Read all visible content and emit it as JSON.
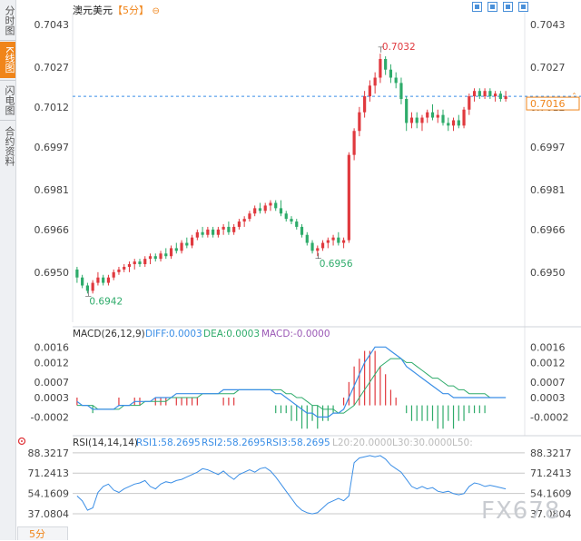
{
  "sidebar": {
    "tabs": [
      {
        "label": "分时图"
      },
      {
        "label": "K线图"
      },
      {
        "label": "闪电图"
      },
      {
        "label": "合约资料"
      }
    ]
  },
  "header": {
    "title": "澳元美元",
    "period": "【5分】",
    "toolbar_icons": [
      "layout-1-icon",
      "layout-2-icon",
      "layout-3-icon",
      "layout-4-icon"
    ]
  },
  "bottom": {
    "period_tab": "5分"
  },
  "watermark": "FX678",
  "colors": {
    "up": "#e0393e",
    "down": "#2eab6a",
    "dif": "#3a8ee6",
    "dea": "#2eab6a",
    "rsi": "#3a8ee6",
    "accent": "#f0851a"
  },
  "chart_data": [
    {
      "type": "candlestick",
      "title": "澳元美元【5分】",
      "ylim": [
        0.6937,
        0.7046
      ],
      "y_ticks": [
        "0.7043",
        "0.7027",
        "0.7012",
        "0.6997",
        "0.6981",
        "0.6966",
        "0.6950"
      ],
      "current_price": "0.7016",
      "annotations": [
        {
          "label": "0.6942"
        },
        {
          "label": "0.6956"
        },
        {
          "label": "0.7032"
        }
      ],
      "candles": [
        {
          "o": 0.6951,
          "h": 0.6952,
          "l": 0.6946,
          "c": 0.6948
        },
        {
          "o": 0.6948,
          "h": 0.6949,
          "l": 0.6944,
          "c": 0.6945
        },
        {
          "o": 0.6945,
          "h": 0.6946,
          "l": 0.6942,
          "c": 0.6943
        },
        {
          "o": 0.6943,
          "h": 0.6947,
          "l": 0.6942,
          "c": 0.6946
        },
        {
          "o": 0.6946,
          "h": 0.695,
          "l": 0.6945,
          "c": 0.6948
        },
        {
          "o": 0.6948,
          "h": 0.6949,
          "l": 0.6945,
          "c": 0.6946
        },
        {
          "o": 0.6946,
          "h": 0.6949,
          "l": 0.6945,
          "c": 0.6948
        },
        {
          "o": 0.6948,
          "h": 0.6951,
          "l": 0.6947,
          "c": 0.695
        },
        {
          "o": 0.695,
          "h": 0.6952,
          "l": 0.6949,
          "c": 0.6951
        },
        {
          "o": 0.6951,
          "h": 0.6953,
          "l": 0.695,
          "c": 0.6952
        },
        {
          "o": 0.6952,
          "h": 0.6954,
          "l": 0.695,
          "c": 0.6953
        },
        {
          "o": 0.6953,
          "h": 0.6955,
          "l": 0.6951,
          "c": 0.6954
        },
        {
          "o": 0.6954,
          "h": 0.6955,
          "l": 0.6952,
          "c": 0.6953
        },
        {
          "o": 0.6953,
          "h": 0.6956,
          "l": 0.6952,
          "c": 0.6955
        },
        {
          "o": 0.6955,
          "h": 0.6957,
          "l": 0.6953,
          "c": 0.6956
        },
        {
          "o": 0.6956,
          "h": 0.6957,
          "l": 0.6954,
          "c": 0.6955
        },
        {
          "o": 0.6955,
          "h": 0.6958,
          "l": 0.6954,
          "c": 0.6957
        },
        {
          "o": 0.6957,
          "h": 0.6959,
          "l": 0.6955,
          "c": 0.6956
        },
        {
          "o": 0.6956,
          "h": 0.696,
          "l": 0.6955,
          "c": 0.6959
        },
        {
          "o": 0.6959,
          "h": 0.6961,
          "l": 0.6957,
          "c": 0.6958
        },
        {
          "o": 0.6958,
          "h": 0.6962,
          "l": 0.6957,
          "c": 0.6961
        },
        {
          "o": 0.6961,
          "h": 0.6963,
          "l": 0.6959,
          "c": 0.696
        },
        {
          "o": 0.696,
          "h": 0.6964,
          "l": 0.6959,
          "c": 0.6963
        },
        {
          "o": 0.6963,
          "h": 0.6966,
          "l": 0.6962,
          "c": 0.6965
        },
        {
          "o": 0.6965,
          "h": 0.6967,
          "l": 0.6963,
          "c": 0.6964
        },
        {
          "o": 0.6964,
          "h": 0.6967,
          "l": 0.6963,
          "c": 0.6966
        },
        {
          "o": 0.6966,
          "h": 0.6967,
          "l": 0.6963,
          "c": 0.6964
        },
        {
          "o": 0.6964,
          "h": 0.6967,
          "l": 0.6963,
          "c": 0.6966
        },
        {
          "o": 0.6966,
          "h": 0.6968,
          "l": 0.6964,
          "c": 0.6967
        },
        {
          "o": 0.6967,
          "h": 0.6969,
          "l": 0.6964,
          "c": 0.6965
        },
        {
          "o": 0.6965,
          "h": 0.6968,
          "l": 0.6964,
          "c": 0.6967
        },
        {
          "o": 0.6967,
          "h": 0.697,
          "l": 0.6966,
          "c": 0.6969
        },
        {
          "o": 0.6969,
          "h": 0.6971,
          "l": 0.6967,
          "c": 0.697
        },
        {
          "o": 0.697,
          "h": 0.6973,
          "l": 0.6969,
          "c": 0.6972
        },
        {
          "o": 0.6972,
          "h": 0.6975,
          "l": 0.6971,
          "c": 0.6974
        },
        {
          "o": 0.6974,
          "h": 0.6976,
          "l": 0.6972,
          "c": 0.6973
        },
        {
          "o": 0.6973,
          "h": 0.6976,
          "l": 0.6972,
          "c": 0.6975
        },
        {
          "o": 0.6975,
          "h": 0.6977,
          "l": 0.6973,
          "c": 0.6976
        },
        {
          "o": 0.6976,
          "h": 0.6977,
          "l": 0.6973,
          "c": 0.6974
        },
        {
          "o": 0.6974,
          "h": 0.6977,
          "l": 0.6971,
          "c": 0.6972
        },
        {
          "o": 0.6972,
          "h": 0.6973,
          "l": 0.6969,
          "c": 0.697
        },
        {
          "o": 0.697,
          "h": 0.6971,
          "l": 0.6968,
          "c": 0.6969
        },
        {
          "o": 0.6969,
          "h": 0.697,
          "l": 0.6966,
          "c": 0.6967
        },
        {
          "o": 0.6967,
          "h": 0.6968,
          "l": 0.6963,
          "c": 0.6964
        },
        {
          "o": 0.6964,
          "h": 0.6965,
          "l": 0.696,
          "c": 0.6961
        },
        {
          "o": 0.6961,
          "h": 0.6962,
          "l": 0.6957,
          "c": 0.6958
        },
        {
          "o": 0.6958,
          "h": 0.696,
          "l": 0.6956,
          "c": 0.6959
        },
        {
          "o": 0.6959,
          "h": 0.6962,
          "l": 0.6958,
          "c": 0.6961
        },
        {
          "o": 0.6961,
          "h": 0.6963,
          "l": 0.6959,
          "c": 0.6962
        },
        {
          "o": 0.6962,
          "h": 0.6964,
          "l": 0.696,
          "c": 0.6963
        },
        {
          "o": 0.6963,
          "h": 0.6965,
          "l": 0.696,
          "c": 0.6961
        },
        {
          "o": 0.6961,
          "h": 0.6963,
          "l": 0.6959,
          "c": 0.6962
        },
        {
          "o": 0.6962,
          "h": 0.6995,
          "l": 0.6961,
          "c": 0.6994
        },
        {
          "o": 0.6994,
          "h": 0.7004,
          "l": 0.6992,
          "c": 0.7003
        },
        {
          "o": 0.7003,
          "h": 0.7012,
          "l": 0.7001,
          "c": 0.701
        },
        {
          "o": 0.701,
          "h": 0.7018,
          "l": 0.7008,
          "c": 0.7016
        },
        {
          "o": 0.7016,
          "h": 0.7022,
          "l": 0.7014,
          "c": 0.702
        },
        {
          "o": 0.702,
          "h": 0.7025,
          "l": 0.7017,
          "c": 0.7023
        },
        {
          "o": 0.7023,
          "h": 0.7032,
          "l": 0.7021,
          "c": 0.703
        },
        {
          "o": 0.703,
          "h": 0.7031,
          "l": 0.7024,
          "c": 0.7026
        },
        {
          "o": 0.7026,
          "h": 0.7028,
          "l": 0.7021,
          "c": 0.7023
        },
        {
          "o": 0.7023,
          "h": 0.7025,
          "l": 0.7019,
          "c": 0.7021
        },
        {
          "o": 0.7021,
          "h": 0.7023,
          "l": 0.7013,
          "c": 0.7015
        },
        {
          "o": 0.7015,
          "h": 0.7016,
          "l": 0.7003,
          "c": 0.7006
        },
        {
          "o": 0.7006,
          "h": 0.701,
          "l": 0.7004,
          "c": 0.7008
        },
        {
          "o": 0.7008,
          "h": 0.701,
          "l": 0.7004,
          "c": 0.7006
        },
        {
          "o": 0.7006,
          "h": 0.7009,
          "l": 0.7003,
          "c": 0.7008
        },
        {
          "o": 0.7008,
          "h": 0.7011,
          "l": 0.7006,
          "c": 0.701
        },
        {
          "o": 0.701,
          "h": 0.7013,
          "l": 0.7007,
          "c": 0.7008
        },
        {
          "o": 0.7008,
          "h": 0.7011,
          "l": 0.7006,
          "c": 0.7009
        },
        {
          "o": 0.7009,
          "h": 0.7011,
          "l": 0.7005,
          "c": 0.7006
        },
        {
          "o": 0.7006,
          "h": 0.7008,
          "l": 0.7003,
          "c": 0.7005
        },
        {
          "o": 0.7005,
          "h": 0.7008,
          "l": 0.7003,
          "c": 0.7007
        },
        {
          "o": 0.7007,
          "h": 0.7009,
          "l": 0.7004,
          "c": 0.7005
        },
        {
          "o": 0.7005,
          "h": 0.7012,
          "l": 0.7004,
          "c": 0.7011
        },
        {
          "o": 0.7011,
          "h": 0.7017,
          "l": 0.7009,
          "c": 0.7016
        },
        {
          "o": 0.7016,
          "h": 0.7019,
          "l": 0.7014,
          "c": 0.7018
        },
        {
          "o": 0.7018,
          "h": 0.7019,
          "l": 0.7015,
          "c": 0.7016
        },
        {
          "o": 0.7016,
          "h": 0.7019,
          "l": 0.7015,
          "c": 0.7018
        },
        {
          "o": 0.7018,
          "h": 0.7019,
          "l": 0.7015,
          "c": 0.7016
        },
        {
          "o": 0.7016,
          "h": 0.7018,
          "l": 0.7014,
          "c": 0.7017
        },
        {
          "o": 0.7017,
          "h": 0.7018,
          "l": 0.7014,
          "c": 0.7015
        },
        {
          "o": 0.7015,
          "h": 0.7018,
          "l": 0.7014,
          "c": 0.7016
        }
      ]
    },
    {
      "type": "line",
      "title": "MACD(26,12,9)",
      "legend": [
        {
          "label": "DIFF:0.0003"
        },
        {
          "label": "DEA:0.0003"
        },
        {
          "label": "MACD:-0.0000"
        }
      ],
      "ylim": [
        -0.0004,
        0.0017
      ],
      "y_ticks": [
        "0.0016",
        "0.0012",
        "0.0007",
        "0.0003",
        "-0.0002"
      ],
      "diff": [
        0.0002,
        0.0001,
        0.0001,
        0.0,
        0.0,
        0.0,
        0.0,
        0.0,
        0.0001,
        0.0001,
        0.0001,
        0.0002,
        0.0002,
        0.0002,
        0.0002,
        0.0003,
        0.0003,
        0.0003,
        0.0003,
        0.0004,
        0.0004,
        0.0004,
        0.0004,
        0.0004,
        0.0004,
        0.0004,
        0.0004,
        0.0004,
        0.0005,
        0.0005,
        0.0005,
        0.0005,
        0.0005,
        0.0005,
        0.0005,
        0.0005,
        0.0005,
        0.0005,
        0.0004,
        0.0004,
        0.0003,
        0.0002,
        0.0001,
        0.0,
        -0.0001,
        -0.0001,
        -0.0002,
        -0.0002,
        -0.0002,
        -0.0001,
        -0.0001,
        0.0,
        0.0003,
        0.0006,
        0.0009,
        0.0012,
        0.0014,
        0.0016,
        0.0016,
        0.0016,
        0.0015,
        0.0014,
        0.0013,
        0.0011,
        0.001,
        0.0009,
        0.0008,
        0.0007,
        0.0006,
        0.0005,
        0.0004,
        0.0004,
        0.0003,
        0.0003,
        0.0003,
        0.0003,
        0.0003,
        0.0003,
        0.0003,
        0.0003,
        0.0003,
        0.0003,
        0.0003
      ],
      "dea": [
        0.0001,
        0.0001,
        0.0001,
        0.0001,
        0.0,
        0.0,
        0.0,
        0.0,
        0.0,
        0.0001,
        0.0001,
        0.0001,
        0.0001,
        0.0002,
        0.0002,
        0.0002,
        0.0002,
        0.0002,
        0.0003,
        0.0003,
        0.0003,
        0.0003,
        0.0003,
        0.0003,
        0.0004,
        0.0004,
        0.0004,
        0.0004,
        0.0004,
        0.0004,
        0.0004,
        0.0005,
        0.0005,
        0.0005,
        0.0005,
        0.0005,
        0.0005,
        0.0005,
        0.0005,
        0.0005,
        0.0004,
        0.0004,
        0.0003,
        0.0003,
        0.0002,
        0.0001,
        0.0001,
        0.0,
        0.0,
        0.0,
        -0.0001,
        -0.0001,
        0.0,
        0.0001,
        0.0003,
        0.0005,
        0.0007,
        0.0009,
        0.0011,
        0.0012,
        0.0013,
        0.0013,
        0.0013,
        0.0012,
        0.0012,
        0.0011,
        0.001,
        0.0009,
        0.0008,
        0.0008,
        0.0007,
        0.0006,
        0.0006,
        0.0005,
        0.0005,
        0.0004,
        0.0004,
        0.0004,
        0.0004,
        0.0003,
        0.0003,
        0.0003,
        0.0003
      ]
    },
    {
      "type": "line",
      "title": "RSI(14,14,14)",
      "legend": [
        {
          "label": "RSI1:58.2695"
        },
        {
          "label": "RSI2:58.2695"
        },
        {
          "label": "RSI3:58.2695"
        },
        {
          "label": "L20:20.0000"
        },
        {
          "label": "L30:30.0000"
        },
        {
          "label": "L50:"
        }
      ],
      "ylim": [
        34,
        92
      ],
      "y_ticks": [
        "88.3217",
        "71.2413",
        "54.1609",
        "37.0804"
      ],
      "rsi": [
        52,
        48,
        40,
        42,
        55,
        60,
        62,
        57,
        55,
        58,
        60,
        62,
        63,
        65,
        60,
        58,
        62,
        64,
        63,
        65,
        66,
        68,
        70,
        72,
        75,
        74,
        72,
        70,
        73,
        69,
        66,
        70,
        72,
        74,
        72,
        75,
        76,
        73,
        68,
        62,
        56,
        50,
        44,
        40,
        38,
        37,
        38,
        42,
        46,
        48,
        50,
        48,
        52,
        80,
        84,
        85,
        86,
        85,
        86,
        83,
        78,
        75,
        72,
        66,
        60,
        58,
        60,
        58,
        59,
        56,
        55,
        56,
        54,
        53,
        54,
        60,
        63,
        62,
        60,
        61,
        60,
        59,
        58
      ]
    }
  ]
}
